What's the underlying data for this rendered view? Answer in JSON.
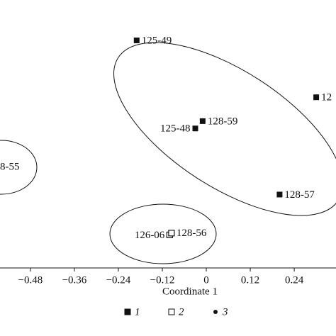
{
  "chart_data": {
    "type": "scatter",
    "x_label": "Coordinate 1",
    "xlim": [
      -0.563,
      0.354
    ],
    "ylim": [
      -0.33,
      0.4
    ],
    "xticks": [
      {
        "value": -0.48,
        "label": "−0.48"
      },
      {
        "value": -0.36,
        "label": "−0.36"
      },
      {
        "value": -0.24,
        "label": "−0.24"
      },
      {
        "value": -0.12,
        "label": "−0.12"
      },
      0,
      0.12,
      0.24
    ],
    "series": [
      {
        "name": "1",
        "color": "#111111",
        "marker": "filled-square",
        "x": [
          -0.19,
          0.3,
          -0.01,
          -0.03,
          0.2
        ],
        "y": [
          0.29,
          0.135,
          0.07,
          0.05,
          -0.13
        ],
        "labels": [
          "125-49",
          "12",
          "128-59",
          "125-48",
          "128-57"
        ]
      },
      {
        "name": "2",
        "color": "#111111",
        "marker": "open-square",
        "x": [
          -0.1,
          -0.095
        ],
        "y": [
          -0.24,
          -0.235
        ],
        "labels": [
          "126-06",
          "128-56"
        ]
      },
      {
        "name": "3",
        "color": "#111111",
        "marker": "circle",
        "x": [],
        "y": [],
        "labels": []
      }
    ],
    "annotations": [
      "8-55"
    ]
  }
}
